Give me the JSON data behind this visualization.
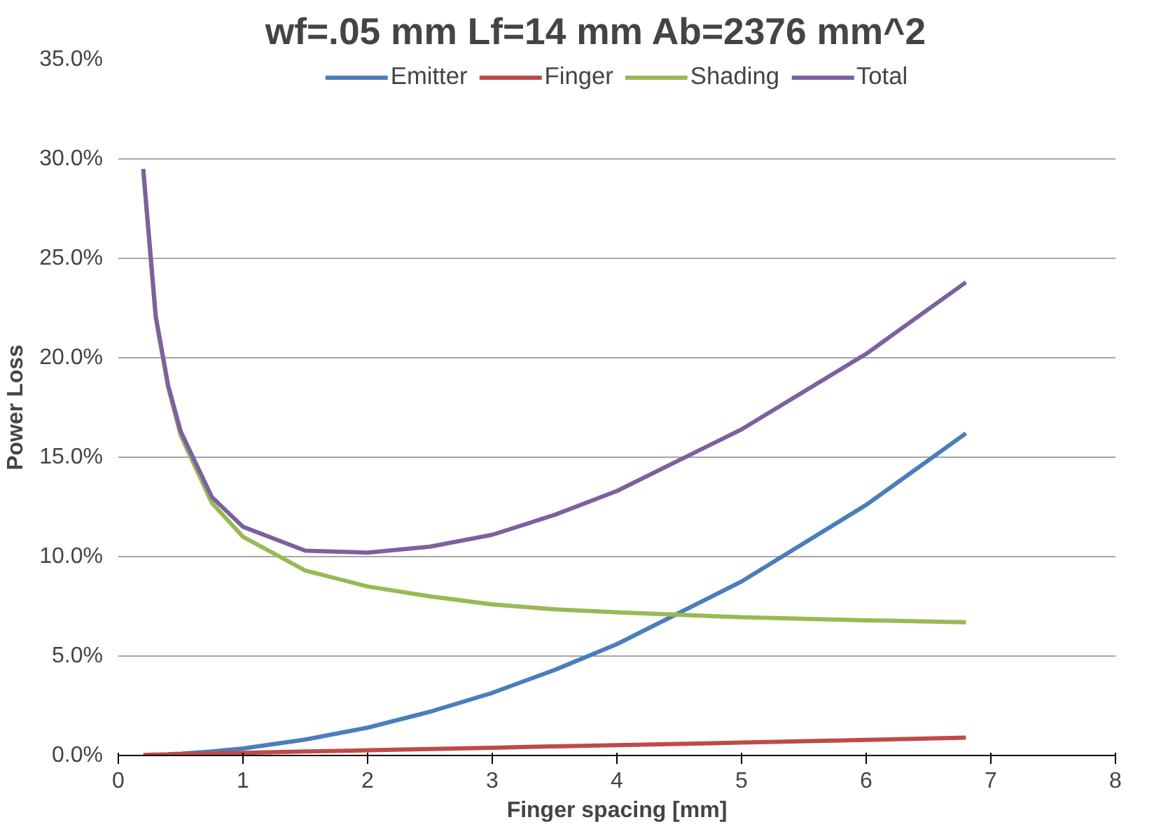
{
  "chart_data": {
    "type": "line",
    "title": "wf=.05 mm   Lf=14 mm   Ab=2376 mm^2",
    "xlabel": "Finger spacing [mm]",
    "ylabel": "Power Loss",
    "x": [
      0.2,
      0.3,
      0.4,
      0.5,
      0.75,
      1,
      1.5,
      2,
      2.5,
      3,
      3.5,
      4,
      5,
      6,
      6.8
    ],
    "series": [
      {
        "name": "Emitter",
        "color": "#4a7ebb",
        "values": [
          null,
          null,
          0.06,
          0.09,
          0.2,
          0.35,
          0.8,
          1.4,
          2.2,
          3.15,
          4.3,
          5.6,
          8.75,
          12.6,
          16.2
        ]
      },
      {
        "name": "Finger",
        "color": "#be4b48",
        "values": [
          0.03,
          0.04,
          0.05,
          0.07,
          0.1,
          0.13,
          0.2,
          0.26,
          0.33,
          0.39,
          0.46,
          0.52,
          0.65,
          0.78,
          0.9
        ]
      },
      {
        "name": "Shading",
        "color": "#98b954",
        "values": [
          29.4,
          22,
          18.5,
          16.1,
          12.7,
          11,
          9.3,
          8.5,
          8,
          7.6,
          7.35,
          7.2,
          6.95,
          6.8,
          6.7
        ]
      },
      {
        "name": "Total",
        "color": "#7d60a0",
        "values": [
          29.5,
          22.1,
          18.6,
          16.3,
          13,
          11.5,
          10.3,
          10.2,
          10.5,
          11.1,
          12.1,
          13.3,
          16.4,
          20.2,
          23.8
        ]
      }
    ],
    "xlim": [
      0,
      8
    ],
    "xticks": [
      0,
      1,
      2,
      3,
      4,
      5,
      6,
      7,
      8
    ],
    "ylim": [
      0,
      35
    ],
    "yticks": [
      {
        "value": 0,
        "label": "0.0%"
      },
      {
        "value": 5,
        "label": "5.0%"
      },
      {
        "value": 10,
        "label": "10.0%"
      },
      {
        "value": 15,
        "label": "15.0%"
      },
      {
        "value": 20,
        "label": "20.0%"
      },
      {
        "value": 25,
        "label": "25.0%"
      },
      {
        "value": 30,
        "label": "30.0%"
      },
      {
        "value": 35,
        "label": "35.0%"
      }
    ],
    "grid": "y",
    "legend": "top",
    "marker": "none",
    "line_style": "solid"
  }
}
